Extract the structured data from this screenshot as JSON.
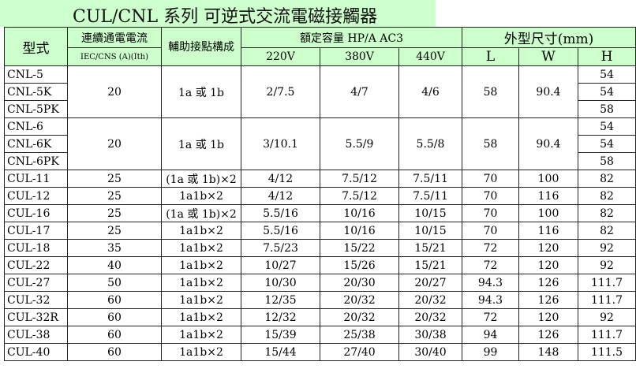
{
  "title": "CUL/CNL  系列 可逆式交流電磁接觸器",
  "header": {
    "model": "型式",
    "current": "連續通電電流",
    "current_sub": "IEC/CNS (A)(Ith)",
    "aux": "輔助接點構成",
    "rated": "額定容量 HP/A AC3",
    "v220": "220V",
    "v380": "380V",
    "v440": "440V",
    "dims": "外型尺寸(mm)",
    "L": "L",
    "W": "W",
    "H": "H"
  },
  "groups": [
    {
      "models": [
        "CNL-5",
        "CNL-5K",
        "CNL-5PK"
      ],
      "current": "20",
      "aux": "1a 或 1b",
      "v220": "2/7.5",
      "v380": "4/7",
      "v440": "4/6",
      "L": "58",
      "W": "90.4",
      "H": [
        "54",
        "54",
        "58"
      ]
    },
    {
      "models": [
        "CNL-6",
        "CNL-6K",
        "CNL-6PK"
      ],
      "current": "20",
      "aux": "1a 或 1b",
      "v220": "3/10.1",
      "v380": "5.5/9",
      "v440": "5.5/8",
      "L": "58",
      "W": "90.4",
      "H": [
        "54",
        "54",
        "58"
      ]
    }
  ],
  "rows": [
    {
      "model": "CUL-11",
      "current": "25",
      "aux": "(1a 或 1b)×2",
      "v220": "4/12",
      "v380": "7.5/12",
      "v440": "7.5/11",
      "L": "70",
      "W": "100",
      "H": "82"
    },
    {
      "model": "CUL-12",
      "current": "25",
      "aux": "1a1b×2",
      "v220": "4/12",
      "v380": "7.5/12",
      "v440": "7.5/11",
      "L": "70",
      "W": "116",
      "H": "82"
    },
    {
      "model": "CUL-16",
      "current": "25",
      "aux": "(1a 或 1b)×2",
      "v220": "5.5/16",
      "v380": "10/16",
      "v440": "10/15",
      "L": "70",
      "W": "100",
      "H": "82"
    },
    {
      "model": "CUL-17",
      "current": "25",
      "aux": "1a1b×2",
      "v220": "5.5/16",
      "v380": "10/16",
      "v440": "10/15",
      "L": "70",
      "W": "116",
      "H": "82"
    },
    {
      "model": "CUL-18",
      "current": "35",
      "aux": "1a1b×2",
      "v220": "7.5/23",
      "v380": "15/22",
      "v440": "15/21",
      "L": "72",
      "W": "120",
      "H": "92"
    },
    {
      "model": "CUL-22",
      "current": "40",
      "aux": "1a1b×2",
      "v220": "10/27",
      "v380": "15/26",
      "v440": "15/21",
      "L": "72",
      "W": "120",
      "H": "92"
    },
    {
      "model": "CUL-27",
      "current": "50",
      "aux": "1a1b×2",
      "v220": "10/30",
      "v380": "20/30",
      "v440": "20/27",
      "L": "94.3",
      "W": "126",
      "H": "111.7"
    },
    {
      "model": "CUL-32",
      "current": "60",
      "aux": "1a1b×2",
      "v220": "12/35",
      "v380": "20/32",
      "v440": "20/32",
      "L": "94.3",
      "W": "126",
      "H": "111.7"
    },
    {
      "model": "CUL-32R",
      "current": "60",
      "aux": "1a1b×2",
      "v220": "12/32",
      "v380": "20/32",
      "v440": "20/32",
      "L": "72",
      "W": "120",
      "H": "92"
    },
    {
      "model": "CUL-38",
      "current": "60",
      "aux": "1a1b×2",
      "v220": "15/39",
      "v380": "25/38",
      "v440": "30/38",
      "L": "94",
      "W": "126",
      "H": "111.7"
    },
    {
      "model": "CUL-40",
      "current": "60",
      "aux": "1a1b×2",
      "v220": "15/44",
      "v380": "27/40",
      "v440": "30/40",
      "L": "99",
      "W": "148",
      "H": "111.5"
    }
  ]
}
